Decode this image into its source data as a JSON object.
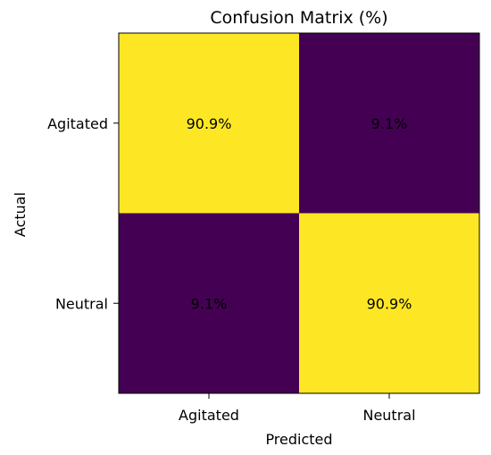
{
  "chart_data": {
    "type": "heatmap",
    "title": "Confusion Matrix (%)",
    "xlabel": "Predicted",
    "ylabel": "Actual",
    "x_categories": [
      "Agitated",
      "Neutral"
    ],
    "y_categories": [
      "Agitated",
      "Neutral"
    ],
    "values": [
      [
        90.9,
        9.1
      ],
      [
        9.1,
        90.9
      ]
    ],
    "cell_labels": [
      [
        "90.9%",
        "9.1%"
      ],
      [
        "9.1%",
        "90.9%"
      ]
    ],
    "colormap": "viridis",
    "colors": {
      "high": "#fde725",
      "low": "#440154"
    },
    "grid": false
  }
}
